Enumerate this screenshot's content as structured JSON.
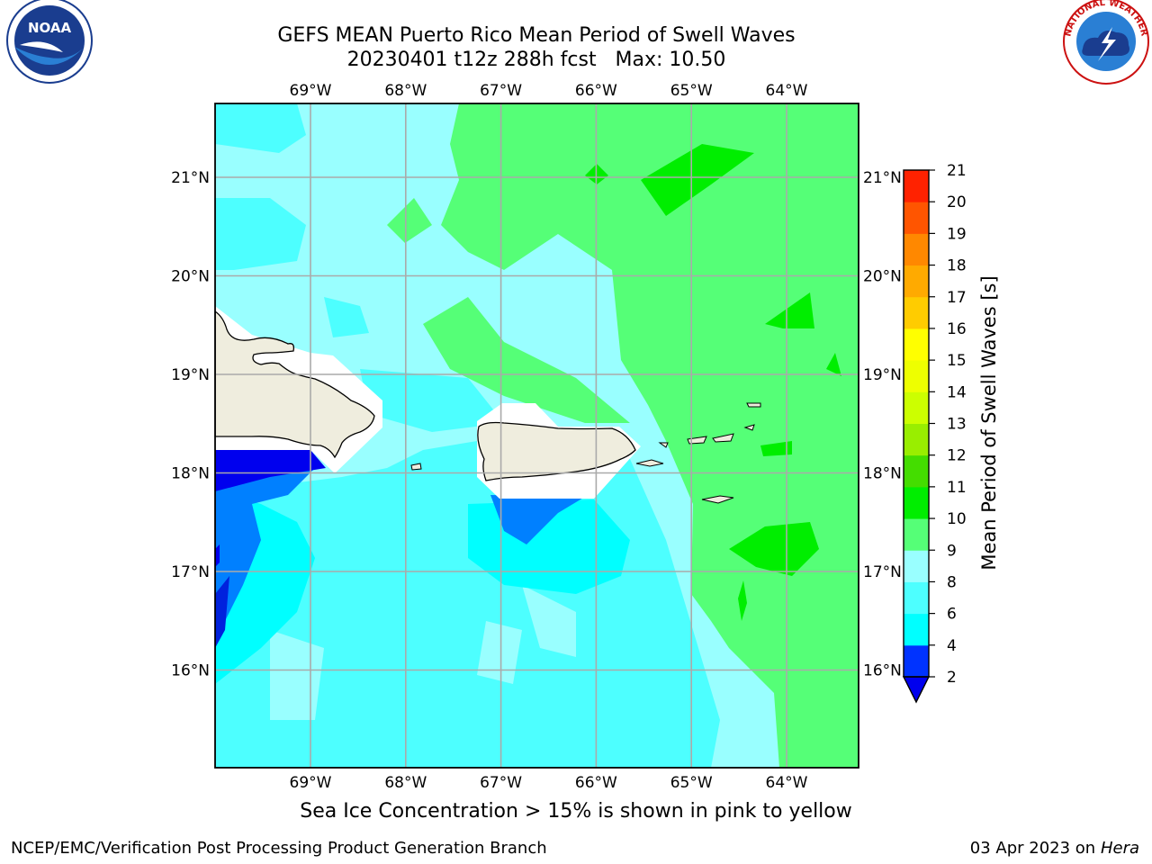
{
  "header": {
    "title": "GEFS MEAN Puerto Rico Mean Period of Swell Waves",
    "subtitle": "20230401 t12z 288h fcst   Max: 10.50"
  },
  "logos": {
    "left": "NOAA",
    "right_ring_text": "NATIONAL WEATHER SERVICE"
  },
  "map": {
    "lon_labels": [
      "69°W",
      "68°W",
      "67°W",
      "66°W",
      "65°W",
      "64°W"
    ],
    "lat_labels": [
      "21°N",
      "20°N",
      "19°N",
      "18°N",
      "17°N",
      "16°N"
    ],
    "lon_values": [
      -69,
      -68,
      -67,
      -66,
      -65,
      -64
    ],
    "lat_values": [
      21,
      20,
      19,
      18,
      17,
      16
    ]
  },
  "colorbar": {
    "title": "Mean Period of Swell Waves [s]",
    "levels": [
      "2",
      "4",
      "6",
      "8",
      "9",
      "10",
      "11",
      "12",
      "13",
      "14",
      "15",
      "16",
      "17",
      "18",
      "19",
      "20",
      "21"
    ],
    "colors": [
      "#0033ff",
      "#00ffff",
      "#4dffff",
      "#99ffff",
      "#55ff77",
      "#00ee00",
      "#44dd00",
      "#99ee00",
      "#ccff00",
      "#eeff00",
      "#ffff00",
      "#ffcc00",
      "#ffaa00",
      "#ff8800",
      "#ff5500",
      "#ff2200"
    ],
    "under_color": "#0000ee"
  },
  "footer": {
    "note": "Sea Ice Concentration > 15% is shown in pink to yellow",
    "credit_left": "NCEP/EMC/Verification Post Processing Product Generation Branch",
    "credit_date": "03 Apr 2023 on ",
    "credit_host": "Hera"
  }
}
